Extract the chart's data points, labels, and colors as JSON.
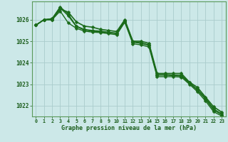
{
  "bg_color": "#cce8e8",
  "grid_color": "#aacccc",
  "line_color": "#1a6b1a",
  "marker_color": "#1a6b1a",
  "xlabel": "Graphe pression niveau de la mer (hPa)",
  "xlabel_color": "#1a5c1a",
  "tick_color": "#1a5c1a",
  "xlim": [
    -0.5,
    23.5
  ],
  "ylim": [
    1021.5,
    1026.85
  ],
  "yticks": [
    1022,
    1023,
    1024,
    1025,
    1026
  ],
  "xticks": [
    0,
    1,
    2,
    3,
    4,
    5,
    6,
    7,
    8,
    9,
    10,
    11,
    12,
    13,
    14,
    15,
    16,
    17,
    18,
    19,
    20,
    21,
    22,
    23
  ],
  "series": [
    [
      1025.75,
      1026.0,
      1026.0,
      1026.5,
      1026.35,
      1025.9,
      1025.7,
      1025.65,
      1025.55,
      1025.5,
      1025.45,
      1026.0,
      1025.0,
      1025.0,
      1024.9,
      1023.5,
      1023.5,
      1023.5,
      1023.5,
      1023.1,
      1022.85,
      1022.4,
      1021.95,
      1021.7
    ],
    [
      1025.75,
      1026.0,
      1026.05,
      1026.6,
      1026.25,
      1025.7,
      1025.55,
      1025.5,
      1025.47,
      1025.42,
      1025.38,
      1025.95,
      1024.98,
      1024.93,
      1024.83,
      1023.45,
      1023.45,
      1023.43,
      1023.42,
      1023.08,
      1022.75,
      1022.35,
      1021.85,
      1021.62
    ],
    [
      1025.75,
      1026.0,
      1026.05,
      1026.55,
      1026.18,
      1025.68,
      1025.52,
      1025.46,
      1025.44,
      1025.39,
      1025.35,
      1025.92,
      1024.95,
      1024.9,
      1024.8,
      1023.42,
      1023.42,
      1023.4,
      1023.38,
      1023.05,
      1022.72,
      1022.3,
      1021.8,
      1021.58
    ],
    [
      1025.75,
      1026.0,
      1026.0,
      1026.4,
      1025.85,
      1025.6,
      1025.47,
      1025.42,
      1025.4,
      1025.35,
      1025.3,
      1025.88,
      1024.88,
      1024.83,
      1024.73,
      1023.35,
      1023.35,
      1023.35,
      1023.33,
      1023.0,
      1022.65,
      1022.22,
      1021.72,
      1021.52
    ]
  ],
  "linewidths": [
    1.2,
    1.0,
    1.0,
    1.0
  ],
  "markersize": 2.5
}
